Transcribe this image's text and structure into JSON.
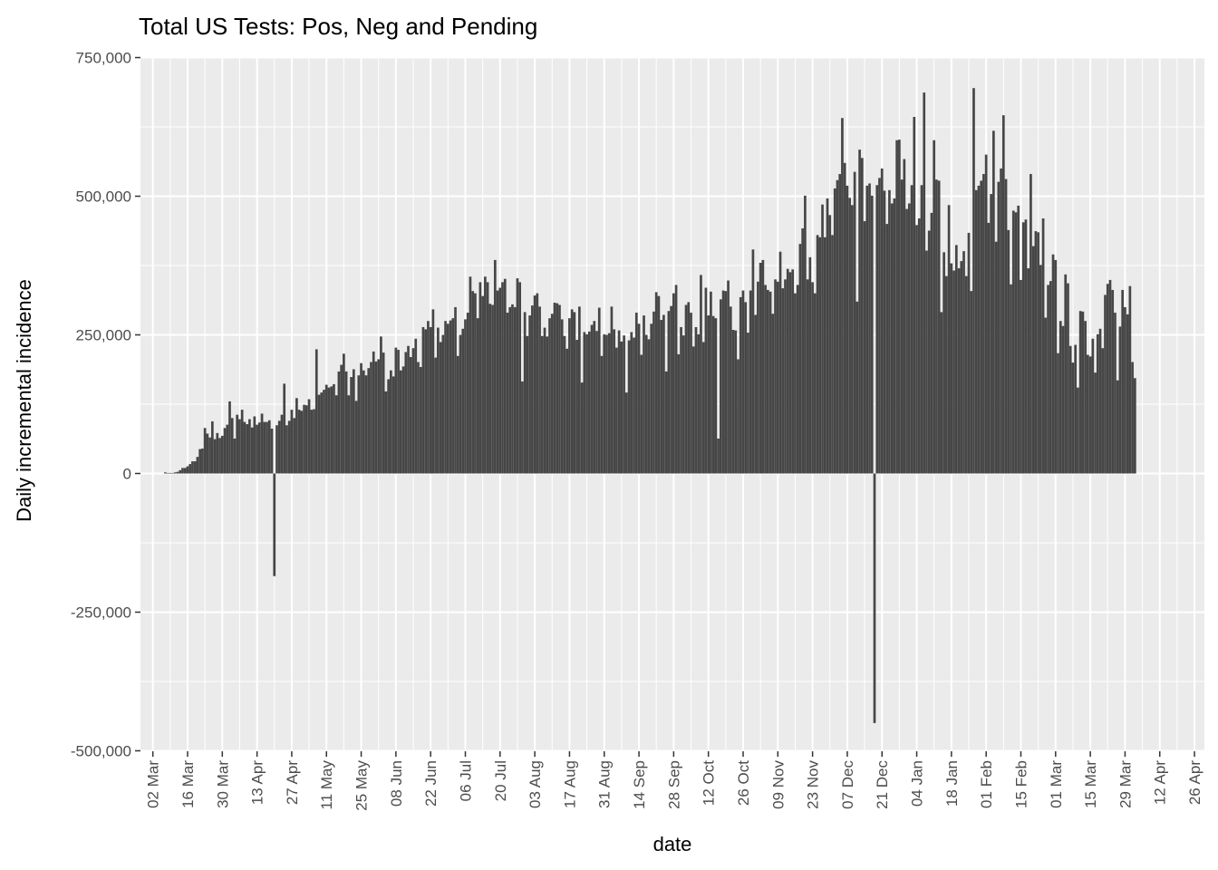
{
  "chart_data": {
    "type": "bar",
    "title": "Total US Tests: Pos, Neg and Pending",
    "xlabel": "date",
    "ylabel": "Daily incremental incidence",
    "x_axis": {
      "scale": "date",
      "range": [
        "2020-02-26",
        "2021-04-30"
      ],
      "ticks": [
        {
          "date": "2020-03-02",
          "label": "02 Mar"
        },
        {
          "date": "2020-03-16",
          "label": "16 Mar"
        },
        {
          "date": "2020-03-30",
          "label": "30 Mar"
        },
        {
          "date": "2020-04-13",
          "label": "13 Apr"
        },
        {
          "date": "2020-04-27",
          "label": "27 Apr"
        },
        {
          "date": "2020-05-11",
          "label": "11 May"
        },
        {
          "date": "2020-05-25",
          "label": "25 May"
        },
        {
          "date": "2020-06-08",
          "label": "08 Jun"
        },
        {
          "date": "2020-06-22",
          "label": "22 Jun"
        },
        {
          "date": "2020-07-06",
          "label": "06 Jul"
        },
        {
          "date": "2020-07-20",
          "label": "20 Jul"
        },
        {
          "date": "2020-08-03",
          "label": "03 Aug"
        },
        {
          "date": "2020-08-17",
          "label": "17 Aug"
        },
        {
          "date": "2020-08-31",
          "label": "31 Aug"
        },
        {
          "date": "2020-09-14",
          "label": "14 Sep"
        },
        {
          "date": "2020-09-28",
          "label": "28 Sep"
        },
        {
          "date": "2020-10-12",
          "label": "12 Oct"
        },
        {
          "date": "2020-10-26",
          "label": "26 Oct"
        },
        {
          "date": "2020-11-09",
          "label": "09 Nov"
        },
        {
          "date": "2020-11-23",
          "label": "23 Nov"
        },
        {
          "date": "2020-12-07",
          "label": "07 Dec"
        },
        {
          "date": "2020-12-21",
          "label": "21 Dec"
        },
        {
          "date": "2021-01-04",
          "label": "04 Jan"
        },
        {
          "date": "2021-01-18",
          "label": "18 Jan"
        },
        {
          "date": "2021-02-01",
          "label": "01 Feb"
        },
        {
          "date": "2021-02-15",
          "label": "15 Feb"
        },
        {
          "date": "2021-03-01",
          "label": "01 Mar"
        },
        {
          "date": "2021-03-15",
          "label": "15 Mar"
        },
        {
          "date": "2021-03-29",
          "label": "29 Mar"
        },
        {
          "date": "2021-04-12",
          "label": "12 Apr"
        },
        {
          "date": "2021-04-26",
          "label": "26 Apr"
        }
      ]
    },
    "y_axis": {
      "ylim": [
        -500000,
        750000
      ],
      "ticks": [
        {
          "value": 750000,
          "label": "750,000"
        },
        {
          "value": 500000,
          "label": "500,000"
        },
        {
          "value": 250000,
          "label": "250,000"
        },
        {
          "value": 0,
          "label": "0"
        },
        {
          "value": -250000,
          "label": "-250,000"
        },
        {
          "value": -500000,
          "label": "-500,000"
        }
      ]
    },
    "grid": true,
    "bar_color": "#464646",
    "panel_background": "#ebebeb",
    "grid_color": "#ffffff",
    "x_start": "2020-03-07",
    "values": [
      2000,
      1000,
      1000,
      1000,
      2000,
      3000,
      6000,
      10000,
      10000,
      13000,
      17000,
      22000,
      22000,
      30000,
      44000,
      45000,
      82000,
      72000,
      65000,
      94000,
      62000,
      73000,
      64000,
      68000,
      82000,
      88000,
      130000,
      100000,
      63000,
      106000,
      98000,
      115000,
      93000,
      89000,
      98000,
      83000,
      103000,
      88000,
      92000,
      108000,
      93000,
      93000,
      96000,
      81000,
      -185000,
      87000,
      95000,
      106000,
      162000,
      87000,
      95000,
      115000,
      100000,
      136000,
      115000,
      113000,
      124000,
      123000,
      134000,
      115000,
      116000,
      224000,
      142000,
      146000,
      151000,
      160000,
      155000,
      157000,
      161000,
      141000,
      184000,
      196000,
      216000,
      184000,
      141000,
      174000,
      188000,
      131000,
      177000,
      199000,
      186000,
      177000,
      190000,
      201000,
      220000,
      202000,
      206000,
      247000,
      218000,
      148000,
      170000,
      186000,
      175000,
      227000,
      223000,
      186000,
      193000,
      219000,
      230000,
      210000,
      226000,
      243000,
      201000,
      192000,
      264000,
      260000,
      275000,
      264000,
      296000,
      209000,
      263000,
      237000,
      250000,
      275000,
      270000,
      276000,
      280000,
      300000,
      212000,
      250000,
      261000,
      278000,
      290000,
      355000,
      329000,
      325000,
      280000,
      345000,
      320000,
      355000,
      345000,
      306000,
      304000,
      385000,
      330000,
      335000,
      345000,
      351000,
      290000,
      300000,
      305000,
      300000,
      352000,
      345000,
      166000,
      291000,
      248000,
      285000,
      303000,
      321000,
      325000,
      301000,
      248000,
      263000,
      247000,
      280000,
      288000,
      308000,
      307000,
      304000,
      278000,
      248000,
      225000,
      280000,
      296000,
      291000,
      241000,
      301000,
      164000,
      255000,
      251000,
      256000,
      268000,
      275000,
      257000,
      299000,
      212000,
      251000,
      250000,
      253000,
      301000,
      260000,
      227000,
      258000,
      238000,
      249000,
      146000,
      240000,
      255000,
      245000,
      290000,
      270000,
      214000,
      285000,
      250000,
      242000,
      270000,
      292000,
      327000,
      320000,
      277000,
      286000,
      184000,
      293000,
      302000,
      325000,
      340000,
      215000,
      264000,
      249000,
      304000,
      309000,
      290000,
      229000,
      264000,
      251000,
      358000,
      237000,
      335000,
      285000,
      328000,
      284000,
      280000,
      63000,
      314000,
      330000,
      329000,
      348000,
      301000,
      259000,
      258000,
      206000,
      318000,
      330000,
      309000,
      254000,
      330000,
      404000,
      286000,
      346000,
      380000,
      385000,
      340000,
      331000,
      328000,
      288000,
      350000,
      346000,
      400000,
      334000,
      350000,
      369000,
      363000,
      368000,
      325000,
      340000,
      414000,
      442000,
      501000,
      350000,
      390000,
      345000,
      325000,
      430000,
      426000,
      485000,
      426000,
      496000,
      466000,
      430000,
      514000,
      529000,
      540000,
      641000,
      560000,
      519000,
      497000,
      484000,
      544000,
      310000,
      584000,
      569000,
      455000,
      519000,
      523000,
      501000,
      -450000,
      520000,
      533000,
      550000,
      510000,
      450000,
      511000,
      487000,
      496000,
      601000,
      602000,
      530000,
      567000,
      477000,
      487000,
      520000,
      643000,
      448000,
      460000,
      520000,
      687000,
      402000,
      438000,
      470000,
      601000,
      530000,
      528000,
      291000,
      399000,
      356000,
      484000,
      379000,
      366000,
      412000,
      370000,
      383000,
      401000,
      356000,
      434000,
      329000,
      695000,
      511000,
      519000,
      528000,
      540000,
      575000,
      452000,
      504000,
      618000,
      418000,
      526000,
      550000,
      646000,
      531000,
      439000,
      341000,
      474000,
      471000,
      483000,
      349000,
      453000,
      458000,
      370000,
      540000,
      410000,
      437000,
      435000,
      376000,
      460000,
      281000,
      340000,
      347000,
      395000,
      385000,
      217000,
      275000,
      266000,
      359000,
      343000,
      230000,
      200000,
      232000,
      155000,
      293000,
      292000,
      275000,
      214000,
      211000,
      243000,
      182000,
      251000,
      261000,
      226000,
      322000,
      342000,
      349000,
      331000,
      290000,
      168000,
      265000,
      331000,
      300000,
      287000,
      338000,
      201000,
      172000
    ]
  }
}
